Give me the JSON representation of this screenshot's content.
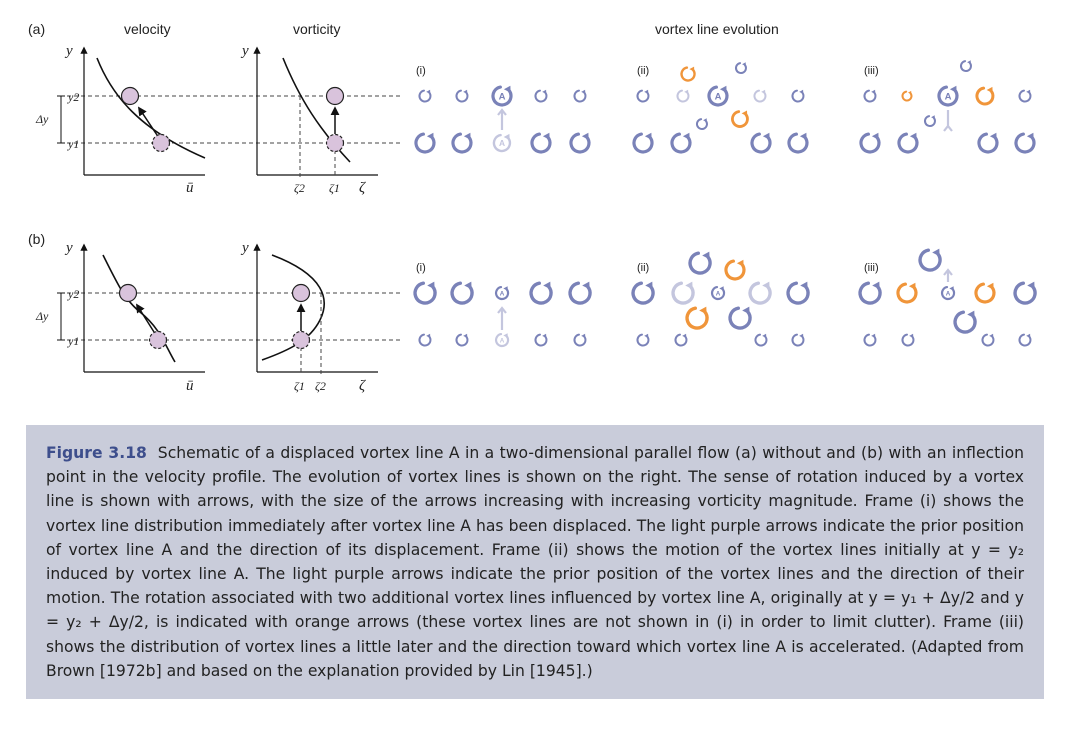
{
  "panels": {
    "a": {
      "label": "(a)",
      "velocity_title": "velocity",
      "vorticity_title": "vorticity",
      "evolution_title": "vortex line evolution",
      "zeta_ticks": [
        "ζ2",
        "ζ1"
      ]
    },
    "b": {
      "label": "(b)",
      "zeta_ticks": [
        "ζ1",
        "ζ2"
      ]
    }
  },
  "axis": {
    "y": "y",
    "u": "ū",
    "zeta": "ζ",
    "dy": "Δy",
    "y1": "y1",
    "y2": "y2"
  },
  "frames": [
    "(i)",
    "(ii)",
    "(iii)"
  ],
  "vortex_label": "A",
  "colors": {
    "vortex": "#7a82b8",
    "prior": "#c4c6de",
    "orange": "#f0953a",
    "marker": "#d9c3dc",
    "caption_bg": "#c9ccda",
    "label": "#3d4e8c"
  },
  "caption": {
    "label": "Figure 3.18",
    "text": "Schematic of a displaced vortex line A in a two-dimensional parallel flow (a) without and (b) with an inflection point in the velocity profile. The evolution of vortex lines is shown on the right. The sense of rotation induced by a vortex line is shown with arrows, with the size of the arrows increasing with increasing vorticity magnitude. Frame (i) shows the vortex line distribution immediately after vortex line A has been displaced. The light purple arrows indicate the prior position of vortex line A and the direction of its displacement. Frame (ii) shows the motion of the vortex lines initially at y = y₂ induced by vortex line A. The light purple arrows indicate the prior position of the vortex lines and the direction of their motion. The rotation associated with two additional vortex lines influenced by vortex line A, originally at y = y₁ + Δy/2 and y = y₂ + Δy/2, is indicated with orange arrows (these vortex lines are not shown in (i) in order to limit clutter). Frame (iii) shows the distribution of vortex lines a little later and the direction toward which vortex line A is accelerated. (Adapted from Brown [1972b] and based on the explanation provided by Lin [1945].)"
  }
}
